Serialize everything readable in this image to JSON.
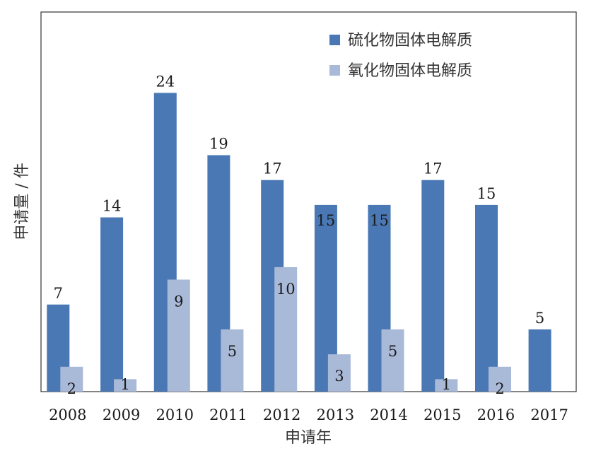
{
  "chart_data": {
    "type": "bar",
    "categories": [
      "2008",
      "2009",
      "2010",
      "2011",
      "2012",
      "2013",
      "2014",
      "2015",
      "2016",
      "2017"
    ],
    "series": [
      {
        "name": "硫化物固体电解质",
        "color": "#4a78b5",
        "values": [
          7,
          14,
          24,
          19,
          17,
          15,
          15,
          17,
          15,
          5
        ]
      },
      {
        "name": "氧化物固体电解质",
        "color": "#a9b9d8",
        "values": [
          2,
          1,
          9,
          5,
          10,
          3,
          5,
          1,
          2,
          0
        ]
      }
    ],
    "xlabel": "申请年",
    "ylabel": "申请量 / 件",
    "ylim": [
      0,
      30.5
    ],
    "grid": false,
    "legend_position": "top-right"
  }
}
